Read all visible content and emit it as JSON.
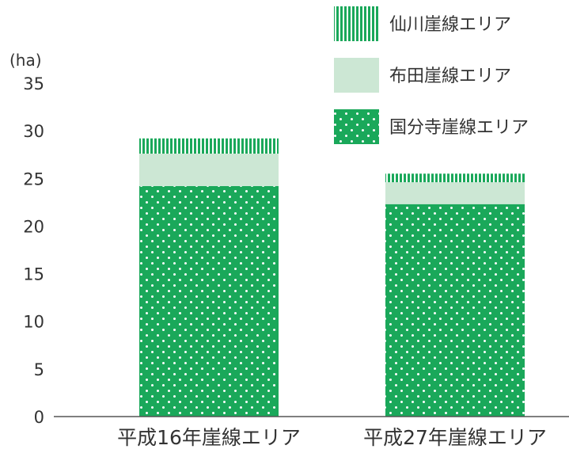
{
  "chart_data": {
    "type": "bar",
    "stacked": true,
    "unit_label": "(ha)",
    "categories": [
      "平成16年崖線エリア",
      "平成27年崖線エリア"
    ],
    "series": [
      {
        "name": "国分寺崖線エリア",
        "values": [
          24.2,
          22.3
        ],
        "color": "#1aa85a",
        "pattern": "dots"
      },
      {
        "name": "布田崖線エリア",
        "values": [
          3.4,
          2.3
        ],
        "color": "#cce7d4",
        "pattern": "solid"
      },
      {
        "name": "仙川崖線エリア",
        "values": [
          1.6,
          0.9
        ],
        "color": "#1aa85a",
        "pattern": "vertical-stripes"
      }
    ],
    "y_ticks": [
      "0",
      "5",
      "10",
      "15",
      "20",
      "25",
      "30",
      "35"
    ],
    "ylim": [
      0,
      35
    ],
    "legend": [
      "仙川崖線エリア",
      "布田崖線エリア",
      "国分寺崖線エリア"
    ],
    "legend_position": "top-right",
    "grid": false
  }
}
